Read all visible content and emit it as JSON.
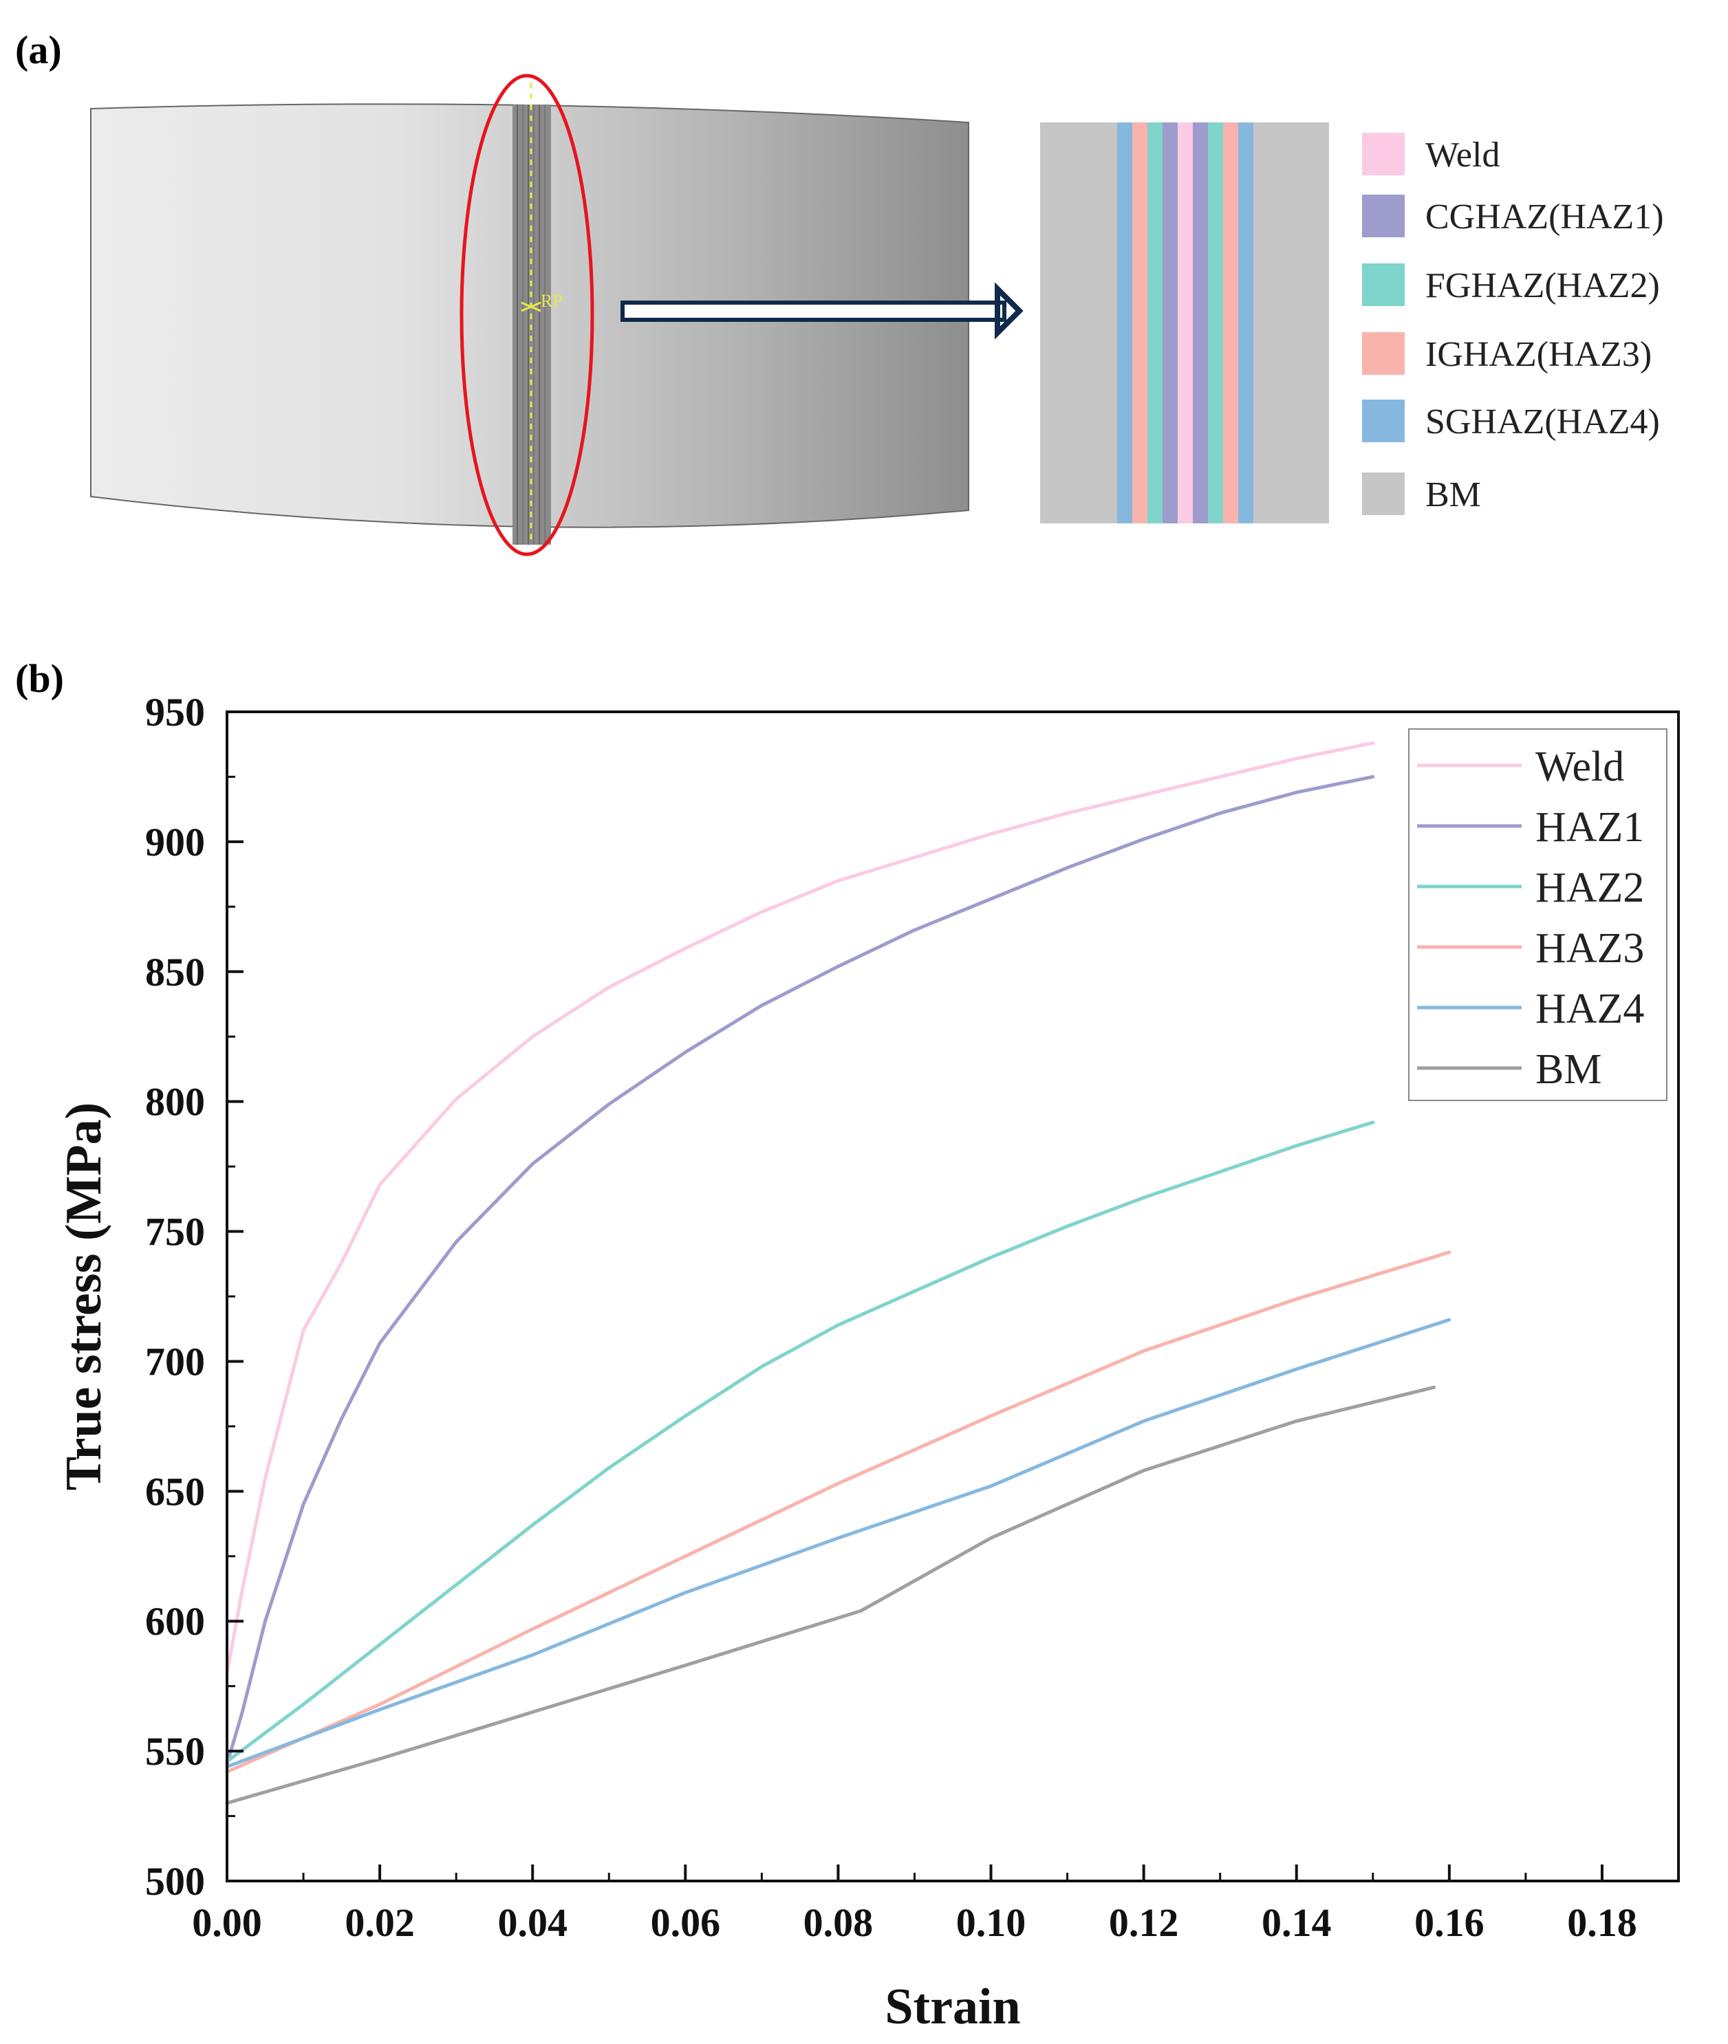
{
  "panel_a": {
    "label": "(a)",
    "model_marker": "RP",
    "legend": [
      {
        "name": "Weld",
        "color": "#fbcbe3"
      },
      {
        "name": "CGHAZ(HAZ1)",
        "color": "#9d9ccd"
      },
      {
        "name": "FGHAZ(HAZ2)",
        "color": "#7fd4cb"
      },
      {
        "name": "IGHAZ(HAZ3)",
        "color": "#f9b3ad"
      },
      {
        "name": "SGHAZ(HAZ4)",
        "color": "#86b8df"
      },
      {
        "name": "BM",
        "color": "#c6c6c6"
      }
    ],
    "strip_colors": {
      "base": "#c6c6c6",
      "weld": "#fbcbe3",
      "haz1": "#9d9ccd",
      "haz2": "#7fd4cb",
      "haz3": "#f9b3ad",
      "haz4": "#86b8df"
    },
    "highlight_color": "#e8141c",
    "arrow_color": "#0f2a4a"
  },
  "panel_b": {
    "label": "(b)",
    "chart_data": {
      "type": "line",
      "title": "",
      "xlabel": "Strain",
      "ylabel": "True stress (MPa)",
      "xlim": [
        0,
        0.19
      ],
      "ylim": [
        500,
        950
      ],
      "xticks": [
        0,
        0.02,
        0.04,
        0.06,
        0.08,
        0.1,
        0.12,
        0.14,
        0.16,
        0.18
      ],
      "xtick_labels": [
        "0.00",
        "0.02",
        "0.04",
        "0.06",
        "0.08",
        "0.10",
        "0.12",
        "0.14",
        "0.16",
        "0.18"
      ],
      "yticks": [
        500,
        550,
        600,
        650,
        700,
        750,
        800,
        850,
        900,
        950
      ],
      "ytick_labels": [
        "500",
        "550",
        "600",
        "650",
        "700",
        "750",
        "800",
        "850",
        "900",
        "950"
      ],
      "legend_position": "top-right",
      "grid": false,
      "series": [
        {
          "name": "Weld",
          "color": "#fbcbe3",
          "x": [
            0,
            0.002,
            0.005,
            0.01,
            0.015,
            0.02,
            0.03,
            0.04,
            0.05,
            0.06,
            0.07,
            0.08,
            0.09,
            0.1,
            0.11,
            0.12,
            0.13,
            0.14,
            0.15
          ],
          "y": [
            580,
            612,
            655,
            712,
            738,
            768,
            801,
            825,
            844,
            859,
            873,
            885,
            894,
            903,
            911,
            918,
            925,
            932,
            938
          ]
        },
        {
          "name": "HAZ1",
          "color": "#9d9ccd",
          "x": [
            0,
            0.002,
            0.005,
            0.01,
            0.015,
            0.02,
            0.03,
            0.04,
            0.05,
            0.06,
            0.07,
            0.08,
            0.09,
            0.1,
            0.11,
            0.12,
            0.13,
            0.14,
            0.15
          ],
          "y": [
            545,
            565,
            600,
            645,
            678,
            707,
            746,
            776,
            799,
            819,
            837,
            852,
            866,
            878,
            890,
            901,
            911,
            919,
            925
          ]
        },
        {
          "name": "HAZ2",
          "color": "#7fd4cb",
          "x": [
            0,
            0.01,
            0.02,
            0.03,
            0.04,
            0.05,
            0.06,
            0.07,
            0.08,
            0.09,
            0.1,
            0.11,
            0.12,
            0.13,
            0.14,
            0.15
          ],
          "y": [
            546,
            568,
            591,
            614,
            637,
            659,
            679,
            698,
            714,
            727,
            740,
            752,
            763,
            773,
            783,
            792
          ]
        },
        {
          "name": "HAZ3",
          "color": "#f9b3ad",
          "x": [
            0,
            0.02,
            0.04,
            0.06,
            0.08,
            0.1,
            0.12,
            0.14,
            0.16
          ],
          "y": [
            542,
            568,
            597,
            625,
            653,
            679,
            704,
            724,
            742
          ]
        },
        {
          "name": "HAZ4",
          "color": "#86b8df",
          "x": [
            0,
            0.02,
            0.04,
            0.06,
            0.08,
            0.1,
            0.12,
            0.14,
            0.16
          ],
          "y": [
            544,
            566,
            587,
            611,
            632,
            652,
            677,
            697,
            716
          ]
        },
        {
          "name": "BM",
          "color": "#a0a0a0",
          "x": [
            0,
            0.02,
            0.04,
            0.06,
            0.083,
            0.1,
            0.12,
            0.14,
            0.158
          ],
          "y": [
            530,
            547,
            565,
            583,
            604,
            632,
            658,
            677,
            690
          ]
        }
      ]
    }
  }
}
